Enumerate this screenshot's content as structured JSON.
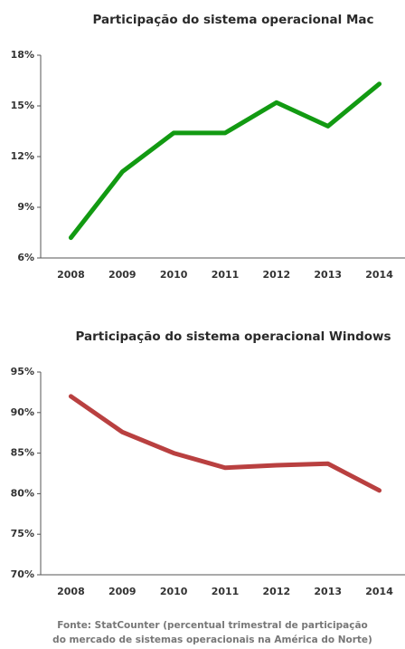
{
  "chart_data": [
    {
      "type": "line",
      "title": "Participação do sistema operacional Mac",
      "categories": [
        "2008",
        "2009",
        "2010",
        "2011",
        "2012",
        "2013",
        "2014"
      ],
      "series": [
        {
          "color": "#129a12",
          "values": [
            7.2,
            11.1,
            13.4,
            13.4,
            15.2,
            13.8,
            16.3
          ]
        }
      ],
      "ylim": [
        6,
        18
      ],
      "yticks": [
        {
          "value": 6,
          "label": "6%"
        },
        {
          "value": 9,
          "label": "9%"
        },
        {
          "value": 12,
          "label": "12%"
        },
        {
          "value": 15,
          "label": "15%"
        },
        {
          "value": 18,
          "label": "18%"
        }
      ],
      "grid": false
    },
    {
      "type": "line",
      "title": "Participação do sistema operacional Windows",
      "categories": [
        "2008",
        "2009",
        "2010",
        "2011",
        "2012",
        "2013",
        "2014"
      ],
      "series": [
        {
          "color": "#b94040",
          "values": [
            92,
            87.6,
            85,
            83.2,
            83.5,
            83.7,
            80.4
          ]
        }
      ],
      "ylim": [
        70,
        95
      ],
      "yticks": [
        {
          "value": 70,
          "label": "70%"
        },
        {
          "value": 75,
          "label": "75%"
        },
        {
          "value": 80,
          "label": "80%"
        },
        {
          "value": 85,
          "label": "85%"
        },
        {
          "value": 90,
          "label": "90%"
        },
        {
          "value": 95,
          "label": "95%"
        }
      ],
      "grid": false
    }
  ],
  "source": [
    "Fonte: StatCounter (percentual trimestral de participação",
    "do mercado de sistemas operacionais na América do Norte)"
  ]
}
